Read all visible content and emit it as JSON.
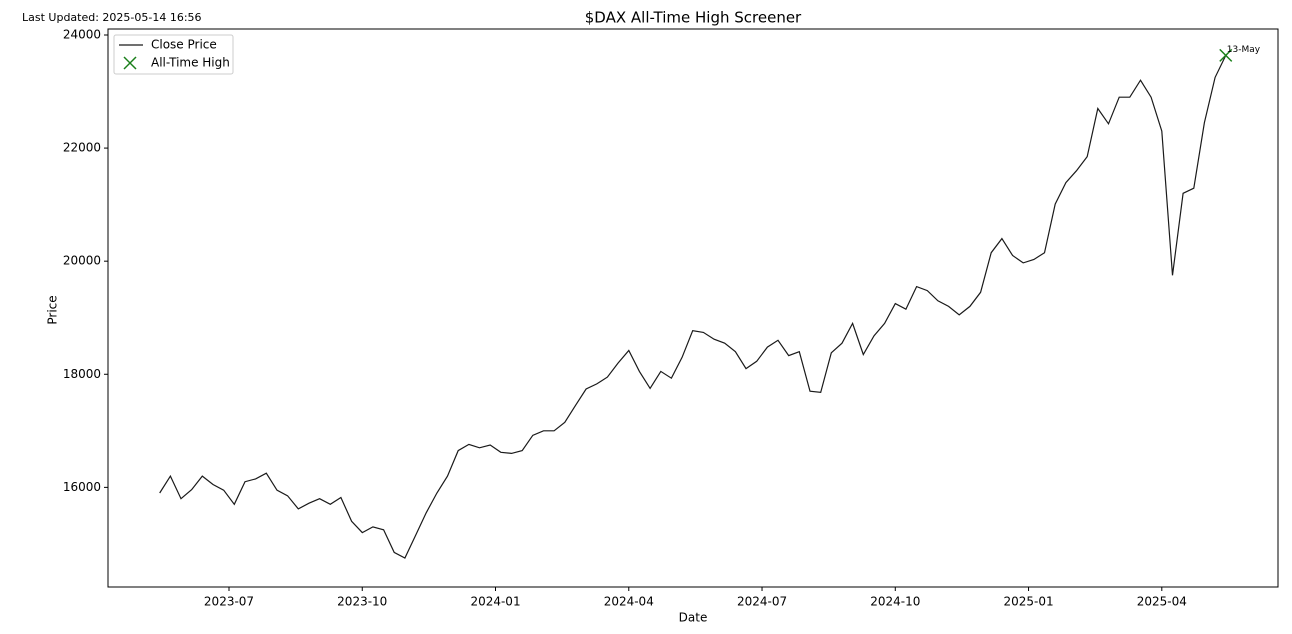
{
  "chart_data": {
    "type": "line",
    "title": "$DAX All-Time High Screener",
    "last_updated": "Last Updated: 2025-05-14 16:56",
    "x_label": "Date",
    "y_label": "Price",
    "xlim": [
      2023.273,
      2025.468
    ],
    "ylim": [
      14238,
      24106
    ],
    "xticks": [
      {
        "value": 2023.5,
        "label": "2023-07"
      },
      {
        "value": 2023.75,
        "label": "2023-10"
      },
      {
        "value": 2024.0,
        "label": "2024-01"
      },
      {
        "value": 2024.25,
        "label": "2024-04"
      },
      {
        "value": 2024.5,
        "label": "2024-07"
      },
      {
        "value": 2024.75,
        "label": "2024-10"
      },
      {
        "value": 2025.0,
        "label": "2025-01"
      },
      {
        "value": 2025.25,
        "label": "2025-04"
      }
    ],
    "yticks": [
      16000,
      18000,
      20000,
      22000,
      24000
    ],
    "legend": "upper left",
    "series": [
      {
        "name": "Close Price",
        "color": "#1a1a1a",
        "mark": "line",
        "x": [
          2023.37,
          2023.39,
          2023.41,
          2023.43,
          2023.45,
          2023.47,
          2023.49,
          2023.51,
          2023.53,
          2023.55,
          2023.57,
          2023.59,
          2023.61,
          2023.63,
          2023.65,
          2023.67,
          2023.69,
          2023.71,
          2023.73,
          2023.75,
          2023.77,
          2023.79,
          2023.81,
          2023.83,
          2023.85,
          2023.87,
          2023.89,
          2023.91,
          2023.93,
          2023.95,
          2023.97,
          2023.99,
          2024.01,
          2024.03,
          2024.05,
          2024.07,
          2024.09,
          2024.11,
          2024.13,
          2024.15,
          2024.17,
          2024.19,
          2024.21,
          2024.23,
          2024.25,
          2024.27,
          2024.29,
          2024.31,
          2024.33,
          2024.35,
          2024.37,
          2024.39,
          2024.41,
          2024.43,
          2024.45,
          2024.47,
          2024.49,
          2024.51,
          2024.53,
          2024.55,
          2024.57,
          2024.59,
          2024.61,
          2024.63,
          2024.65,
          2024.67,
          2024.69,
          2024.71,
          2024.73,
          2024.75,
          2024.77,
          2024.79,
          2024.81,
          2024.83,
          2024.85,
          2024.87,
          2024.89,
          2024.91,
          2024.93,
          2024.95,
          2024.97,
          2024.99,
          2025.01,
          2025.03,
          2025.05,
          2025.07,
          2025.09,
          2025.11,
          2025.13,
          2025.15,
          2025.17,
          2025.19,
          2025.21,
          2025.23,
          2025.25,
          2025.27,
          2025.29,
          2025.31,
          2025.33,
          2025.35,
          2025.37
        ],
        "values": [
          15900,
          16200,
          15800,
          15960,
          16200,
          16050,
          15950,
          15700,
          16100,
          16150,
          16250,
          15950,
          15850,
          15620,
          15720,
          15800,
          15700,
          15820,
          15400,
          15200,
          15300,
          15250,
          14850,
          14750,
          15150,
          15550,
          15900,
          16200,
          16650,
          16760,
          16700,
          16750,
          16620,
          16600,
          16650,
          16920,
          17000,
          17000,
          17150,
          17450,
          17740,
          17830,
          17950,
          18200,
          18420,
          18050,
          17750,
          18050,
          17930,
          18300,
          18770,
          18740,
          18620,
          18550,
          18400,
          18100,
          18230,
          18480,
          18600,
          18330,
          18400,
          17700,
          17680,
          18380,
          18550,
          18900,
          18350,
          18680,
          18900,
          19250,
          19150,
          19550,
          19480,
          19300,
          19200,
          19050,
          19200,
          19450,
          20150,
          20400,
          20100,
          19970,
          20030,
          20150,
          21010,
          21390,
          21600,
          21850,
          22700,
          22430,
          22900,
          22900,
          23200,
          22900,
          22300,
          19750,
          21200,
          21290,
          22450,
          23250,
          23640
        ]
      },
      {
        "name": "All-Time High",
        "color": "#1a7f1a",
        "mark": "x",
        "x": [
          2025.37
        ],
        "values": [
          23640
        ]
      }
    ],
    "annotations": [
      {
        "text": "13-May",
        "x": 2025.37,
        "y": 23640
      }
    ]
  }
}
